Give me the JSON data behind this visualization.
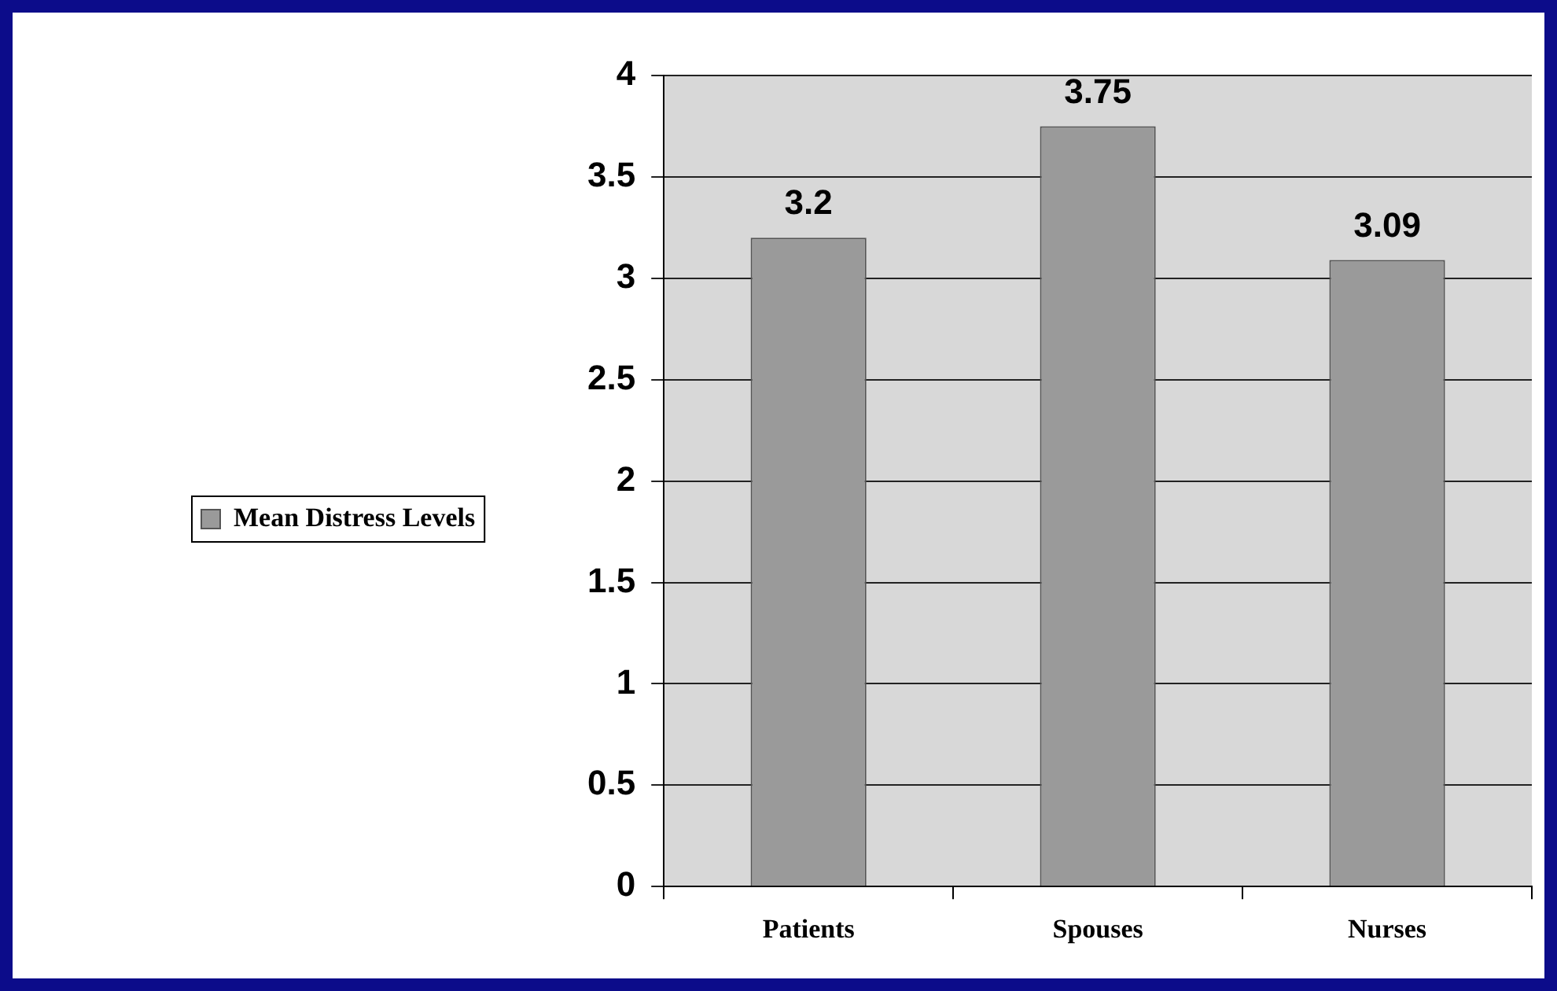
{
  "chart_data": {
    "type": "bar",
    "categories": [
      "Patients",
      "Spouses",
      "Nurses"
    ],
    "series": [
      {
        "name": "Mean Distress Levels",
        "color": "#9a9a9a",
        "values": [
          3.2,
          3.75,
          3.09
        ]
      }
    ],
    "ylim": [
      0,
      4
    ],
    "yticks": [
      0,
      0.5,
      1,
      1.5,
      2,
      2.5,
      3,
      3.5,
      4
    ],
    "grid": "y",
    "legend": "left",
    "data_labels": true
  }
}
